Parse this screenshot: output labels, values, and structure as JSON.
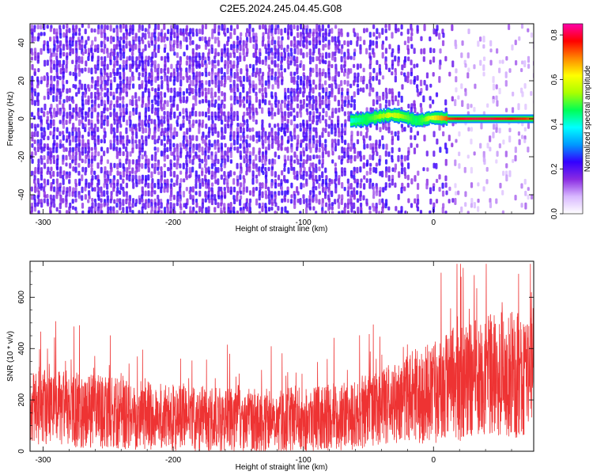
{
  "figure": {
    "title": "C2E5.2024.245.04.45.G08"
  },
  "chart_data": [
    {
      "type": "heatmap",
      "title": "",
      "xlabel": "Height of straight line (km)",
      "ylabel": "Frequency (Hz)",
      "xlim": [
        -310,
        77
      ],
      "ylim": [
        -50,
        50
      ],
      "x_ticks": [
        -300,
        -200,
        -100,
        0
      ],
      "x_tick_labels": [
        "-300",
        "-200",
        "-100",
        "0"
      ],
      "y_ticks": [
        -40,
        -20,
        0,
        20,
        40
      ],
      "y_tick_labels": [
        "-40",
        "-20",
        "0",
        "20",
        "40"
      ],
      "colorbar": {
        "label": "Normalized spectral amplitude",
        "range": [
          0,
          0.85
        ],
        "ticks": [
          0.0,
          0.2,
          0.4,
          0.6,
          0.8
        ],
        "tick_labels": [
          "0.0",
          "0.2",
          "0.4",
          "0.6",
          "0.8"
        ],
        "colormap": [
          "#ffffff",
          "#d8b8ff",
          "#8a2be2",
          "#3300ff",
          "#0099ff",
          "#00ffff",
          "#00ff55",
          "#aaff00",
          "#ffff00",
          "#ff8800",
          "#ff0000",
          "#ff00aa"
        ]
      },
      "description_of_values": {
        "noise_region_x": [
          -310,
          -60
        ],
        "noise_dense_x": [
          -310,
          -95
        ],
        "noise_level": 0.05,
        "fade_region_x": [
          -95,
          15
        ],
        "sparse_region_x": [
          15,
          77
        ],
        "sparse_noise_level": 0.02,
        "signal_track": [
          {
            "x": -64,
            "f": -1.0,
            "a": 0.4
          },
          {
            "x": -55,
            "f": -0.5,
            "a": 0.45
          },
          {
            "x": -47,
            "f": 0.5,
            "a": 0.5
          },
          {
            "x": -40,
            "f": 1.5,
            "a": 0.55
          },
          {
            "x": -33,
            "f": 2.0,
            "a": 0.6
          },
          {
            "x": -26,
            "f": 1.5,
            "a": 0.55
          },
          {
            "x": -20,
            "f": 0.5,
            "a": 0.5
          },
          {
            "x": -14,
            "f": -1.0,
            "a": 0.45
          },
          {
            "x": -8,
            "f": -0.5,
            "a": 0.5
          },
          {
            "x": -3,
            "f": 0.5,
            "a": 0.6
          },
          {
            "x": 3,
            "f": 0.5,
            "a": 0.65
          },
          {
            "x": 12,
            "f": 0.0,
            "a": 0.75
          },
          {
            "x": 25,
            "f": 0.0,
            "a": 0.8
          },
          {
            "x": 40,
            "f": 0.0,
            "a": 0.8
          },
          {
            "x": 55,
            "f": 0.0,
            "a": 0.78
          },
          {
            "x": 70,
            "f": 0.0,
            "a": 0.75
          },
          {
            "x": 77,
            "f": 0.0,
            "a": 0.7
          }
        ]
      }
    },
    {
      "type": "line",
      "title": "",
      "xlabel": "Height of straight line (km)",
      "ylabel": "SNR (10 * v/v)",
      "xlim": [
        -310,
        77
      ],
      "ylim": [
        0,
        740
      ],
      "x_ticks": [
        -300,
        -200,
        -100,
        0
      ],
      "x_tick_labels": [
        "-300",
        "-200",
        "-100",
        "0"
      ],
      "y_ticks": [
        0,
        200,
        400,
        600
      ],
      "y_tick_labels": [
        "0",
        "200",
        "400",
        "600"
      ],
      "series": [
        {
          "color": "#ee3333",
          "envelope_x": [
            -310,
            -280,
            -250,
            -200,
            -150,
            -100,
            -60,
            -40,
            -20,
            0,
            10,
            20,
            40,
            60,
            77
          ],
          "envelope_mid": [
            170,
            165,
            150,
            130,
            120,
            125,
            140,
            170,
            200,
            230,
            250,
            270,
            290,
            300,
            300
          ],
          "envelope_spread": [
            150,
            150,
            140,
            130,
            125,
            125,
            135,
            150,
            170,
            200,
            220,
            230,
            240,
            250,
            250
          ],
          "peak_max": 730
        }
      ]
    }
  ]
}
